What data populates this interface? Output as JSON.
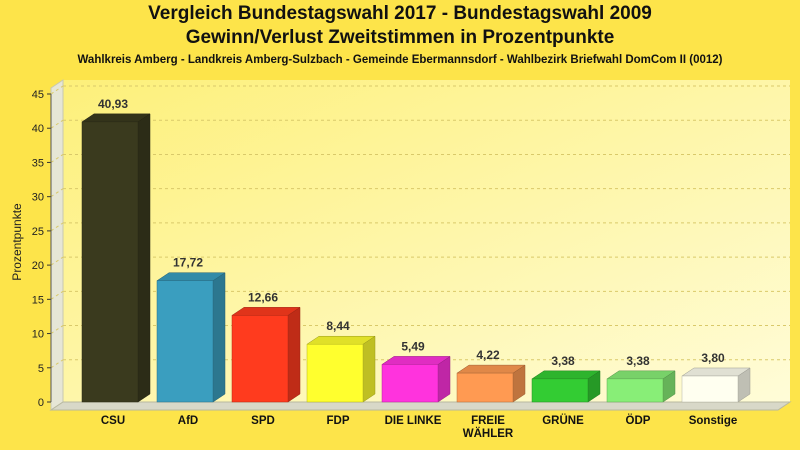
{
  "header": {
    "title_line1": "Vergleich Bundestagswahl 2017 - Bundestagswahl 2009",
    "title_line2": "Gewinn/Verlust Zweitstimmen in Prozentpunkte",
    "subtitle": "Wahlkreis Amberg - Landkreis Amberg-Sulzbach - Gemeinde Ebermannsdorf - Wahlbezirk Briefwahl DomCom II (0012)"
  },
  "chart_data": {
    "type": "bar",
    "title": "Vergleich Bundestagswahl 2017 - Bundestagswahl 2009",
    "subtitle": "Gewinn/Verlust Zweitstimmen in Prozentpunkte",
    "ylabel": "Prozentpunkte",
    "xlabel": "",
    "ylim": [
      0,
      45
    ],
    "yticks": [
      0,
      5,
      10,
      15,
      20,
      25,
      30,
      35,
      40,
      45
    ],
    "grid": true,
    "legend": "none",
    "categories": [
      "CSU",
      "AfD",
      "SPD",
      "FDP",
      "DIE LINKE",
      "FREIE WÄHLER",
      "GRÜNE",
      "ÖDP",
      "Sonstige"
    ],
    "category_lines": [
      [
        "CSU"
      ],
      [
        "AfD"
      ],
      [
        "SPD"
      ],
      [
        "FDP"
      ],
      [
        "DIE LINKE"
      ],
      [
        "FREIE",
        "WÄHLER"
      ],
      [
        "GRÜNE"
      ],
      [
        "ÖDP"
      ],
      [
        "Sonstige"
      ]
    ],
    "values": [
      40.93,
      17.72,
      12.66,
      8.44,
      5.49,
      4.22,
      3.38,
      3.38,
      3.8
    ],
    "value_labels": [
      "40,93",
      "17,72",
      "12,66",
      "8,44",
      "5,49",
      "4,22",
      "3,38",
      "3,38",
      "3,80"
    ],
    "colors": [
      "#3a3a1e",
      "#3a9ebf",
      "#ff3b1e",
      "#ffff2e",
      "#ff33dd",
      "#ff9a52",
      "#33cc33",
      "#88ee77",
      "#fffff0"
    ]
  }
}
